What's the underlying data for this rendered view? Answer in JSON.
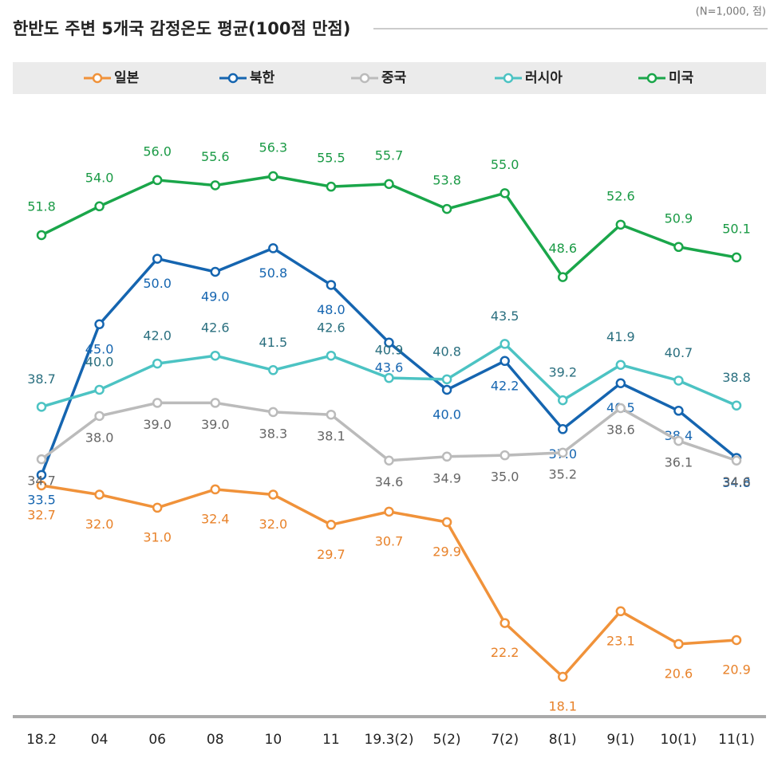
{
  "chart_data": {
    "type": "line",
    "title": "한반도 주변 5개국 감정온도 평균(100점 만점)",
    "subtitle": "(N=1,000, 점)",
    "categories": [
      "18.2",
      "04",
      "06",
      "08",
      "10",
      "11",
      "19.3(2)",
      "5(2)",
      "7(2)",
      "8(1)",
      "9(1)",
      "10(1)",
      "11(1)"
    ],
    "series": [
      {
        "name": "일본",
        "color": "#f0923a",
        "values": [
          32.7,
          32.0,
          31.0,
          32.4,
          32.0,
          29.7,
          30.7,
          29.9,
          22.2,
          18.1,
          23.1,
          20.6,
          20.9
        ],
        "value_labels": [
          "32.7",
          "32.0",
          "31.0",
          "32.4",
          "32.0",
          "29.7",
          "30.7",
          "29.9",
          "22.2",
          "18.1",
          "23.1",
          "20.6",
          "20.9"
        ]
      },
      {
        "name": "북한",
        "color": "#1565b0",
        "values": [
          33.5,
          45.0,
          50.0,
          49.0,
          50.8,
          48.0,
          43.6,
          40.0,
          42.2,
          37.0,
          40.5,
          38.4,
          34.8
        ],
        "value_labels": [
          "33.5",
          "45.0",
          "50.0",
          "49.0",
          "50.8",
          "48.0",
          "43.6",
          "40.0",
          "42.2",
          "37.0",
          "40.5",
          "38.4",
          "34.8"
        ]
      },
      {
        "name": "중국",
        "color": "#bbbbbb",
        "values": [
          34.7,
          38.0,
          39.0,
          39.0,
          38.3,
          38.1,
          34.6,
          34.9,
          35.0,
          35.2,
          38.6,
          36.1,
          34.6
        ],
        "value_labels": [
          "34.7",
          "38.0",
          "39.0",
          "39.0",
          "38.3",
          "38.1",
          "34.6",
          "34.9",
          "35.0",
          "35.2",
          "38.6",
          "36.1",
          "34.6"
        ]
      },
      {
        "name": "러시아",
        "color": "#4cc3c3",
        "values": [
          38.7,
          40.0,
          42.0,
          42.6,
          41.5,
          42.6,
          40.9,
          40.8,
          43.5,
          39.2,
          41.9,
          40.7,
          38.8
        ],
        "value_labels": [
          "38.7",
          "40.0",
          "42.0",
          "42.6",
          "41.5",
          "42.6",
          "40.9",
          "40.8",
          "43.5",
          "39.2",
          "41.9",
          "40.7",
          "38.8"
        ]
      },
      {
        "name": "미국",
        "color": "#1aa64a",
        "values": [
          51.8,
          54.0,
          56.0,
          55.6,
          56.3,
          55.5,
          55.7,
          53.8,
          55.0,
          48.6,
          52.6,
          50.9,
          50.1
        ],
        "value_labels": [
          "51.8",
          "54.0",
          "56.0",
          "55.6",
          "56.3",
          "55.5",
          "55.7",
          "53.8",
          "55.0",
          "48.6",
          "52.6",
          "50.9",
          "50.1"
        ]
      }
    ]
  }
}
